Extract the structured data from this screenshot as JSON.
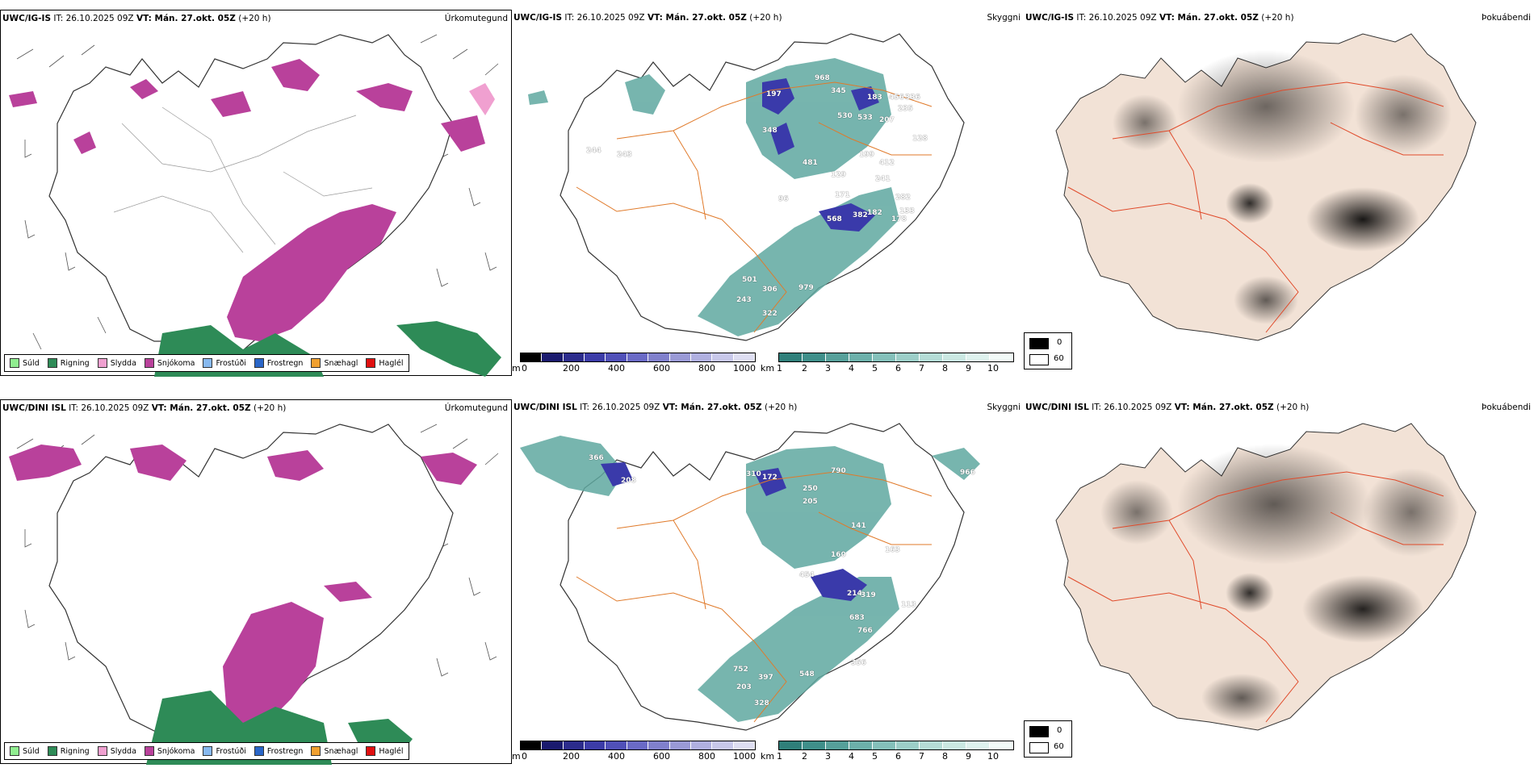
{
  "rows": [
    {
      "model": "UWC/IG-IS",
      "it_label": "IT: 26.10.2025 09Z",
      "vt_label": "VT: Mán. 27.okt. 05Z",
      "lead": "(+20 h)",
      "numbers": [
        "968",
        "345",
        "183",
        "456",
        "336",
        "207",
        "530",
        "533",
        "235",
        "128",
        "197",
        "481",
        "243",
        "348",
        "199",
        "241",
        "412",
        "129",
        "171",
        "382",
        "182",
        "178",
        "568",
        "133",
        "244",
        "282",
        "501",
        "306",
        "243",
        "979",
        "322",
        "96"
      ]
    },
    {
      "model": "UWC/DINI ISL",
      "it_label": "IT: 26.10.2025 09Z",
      "vt_label": "VT: Mán. 27.okt. 05Z",
      "lead": "(+20 h)",
      "numbers": [
        "366",
        "310",
        "208",
        "172",
        "790",
        "250",
        "966",
        "205",
        "163",
        "141",
        "160",
        "454",
        "214",
        "319",
        "113",
        "683",
        "766",
        "548",
        "752",
        "397",
        "203",
        "328",
        "356"
      ]
    }
  ],
  "panel_titles": {
    "precip": "Úrkomutegund",
    "cloud": "Skyggni",
    "fog": "Þokuábendi"
  },
  "precip_legend": [
    {
      "label": "Súld",
      "color": "#90ee90"
    },
    {
      "label": "Rigning",
      "color": "#2e8b57"
    },
    {
      "label": "Slydda",
      "color": "#f0a0d0"
    },
    {
      "label": "Snjókoma",
      "color": "#b9419b"
    },
    {
      "label": "Frostúði",
      "color": "#87b9f0"
    },
    {
      "label": "Frostregn",
      "color": "#2a66c8"
    },
    {
      "label": "Snæhagl",
      "color": "#f0a030"
    },
    {
      "label": "Haglél",
      "color": "#e01010"
    }
  ],
  "cloudbase_bar": {
    "unit": "m",
    "ticks": [
      "0",
      "200",
      "400",
      "600",
      "800",
      "1000"
    ],
    "colors": [
      "#000000",
      "#1a1a6e",
      "#2c2c8c",
      "#3c3ca8",
      "#5050b8",
      "#6a6ac6",
      "#8080cc",
      "#9a9ad6",
      "#b0b0e0",
      "#c8c8ea",
      "#dedef2"
    ]
  },
  "visibility_bar": {
    "unit": "km",
    "ticks": [
      "1",
      "2",
      "3",
      "4",
      "5",
      "6",
      "7",
      "8",
      "9",
      "10"
    ],
    "colors": [
      "#2f7f7a",
      "#3f8f8a",
      "#56a09a",
      "#6cb0aa",
      "#84c0ba",
      "#9ccec8",
      "#b4dcd6",
      "#cae8e2",
      "#def2ee",
      "#f2faf8"
    ]
  },
  "fog_key": {
    "high": "0",
    "low": "60"
  },
  "colors": {
    "snow": "#b9419b",
    "rain": "#2e8b57",
    "sleet": "#f0a0d0",
    "teal": "#5fa8a0",
    "blue": "#3a3aaa",
    "road": "#e07a2a",
    "land": "#f2e2d6"
  }
}
